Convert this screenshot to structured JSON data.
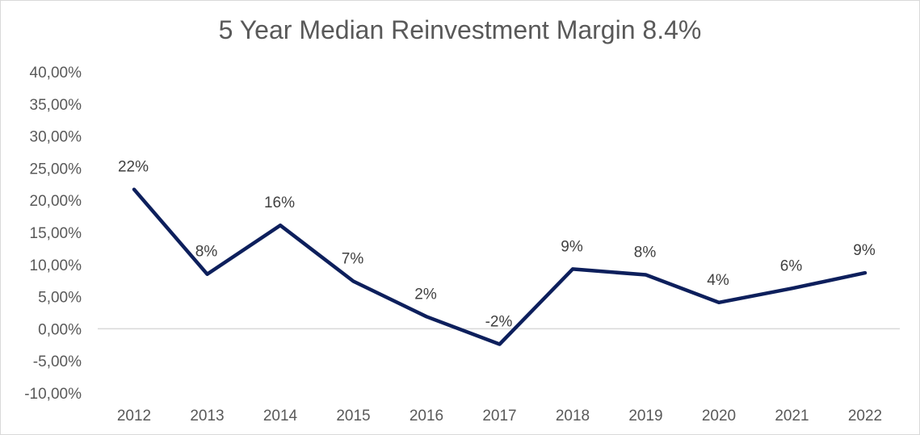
{
  "chart_data": {
    "type": "line",
    "title": "5 Year Median Reinvestment Margin 8.4%",
    "xlabel": "",
    "ylabel": "",
    "categories": [
      "2012",
      "2013",
      "2014",
      "2015",
      "2016",
      "2017",
      "2018",
      "2019",
      "2020",
      "2021",
      "2022"
    ],
    "series": [
      {
        "name": "Reinvestment Margin",
        "values": [
          21.7,
          8.5,
          16.1,
          7.4,
          1.9,
          -2.4,
          9.3,
          8.4,
          4.1,
          6.3,
          8.7
        ],
        "labels": [
          "22%",
          "8%",
          "16%",
          "7%",
          "2%",
          "-2%",
          "9%",
          "8%",
          "4%",
          "6%",
          "9%"
        ]
      }
    ],
    "ylim": [
      -10,
      40
    ],
    "y_ticks": [
      40,
      35,
      30,
      25,
      20,
      15,
      10,
      5,
      0,
      -5,
      -10
    ],
    "y_tick_labels": [
      "40,00%",
      "35,00%",
      "30,00%",
      "25,00%",
      "20,00%",
      "15,00%",
      "10,00%",
      "5,00%",
      "0,00%",
      "-5,00%",
      "-10,00%"
    ],
    "grid": false,
    "legend": "none",
    "colors": {
      "line": "#0d1f5c",
      "zero_axis": "#d9d9d9"
    }
  }
}
